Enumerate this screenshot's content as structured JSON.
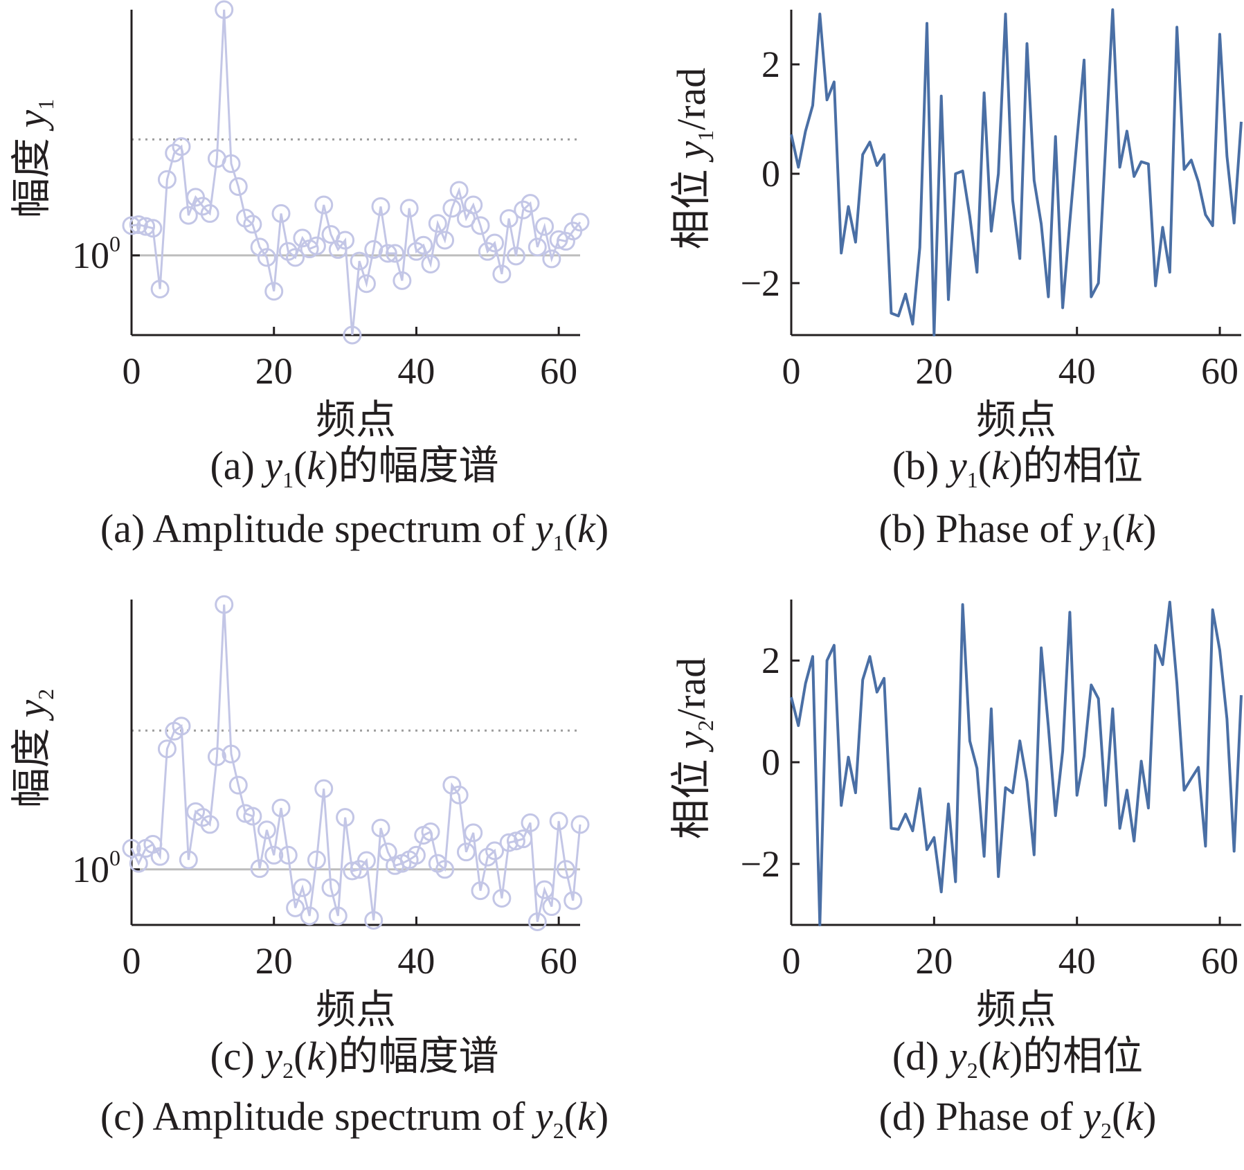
{
  "figure": {
    "panels": [
      {
        "id": "a",
        "ylabel_prefix": "幅度",
        "ylabel_var": "y",
        "ylabel_sub": "1",
        "ylabel_suffix": "",
        "xlabel": "频点",
        "ytick_base": "10",
        "ytick_exp": "0",
        "cap_zh": {
          "pre": "(a)",
          "var": "y",
          "sub": "1",
          "arg": "k",
          "post": "的幅度谱"
        },
        "cap_en": {
          "pre": "(a) Amplitude spectrum of",
          "var": "y",
          "sub": "1",
          "arg": "k",
          "post": ""
        }
      },
      {
        "id": "b",
        "ylabel_prefix": "相位",
        "ylabel_var": "y",
        "ylabel_sub": "1",
        "ylabel_suffix": "/rad",
        "xlabel": "频点",
        "cap_zh": {
          "pre": "(b)",
          "var": "y",
          "sub": "1",
          "arg": "k",
          "post": "的相位"
        },
        "cap_en": {
          "pre": "(b) Phase of",
          "var": "y",
          "sub": "1",
          "arg": "k",
          "post": ""
        }
      },
      {
        "id": "c",
        "ylabel_prefix": "幅度",
        "ylabel_var": "y",
        "ylabel_sub": "2",
        "ylabel_suffix": "",
        "xlabel": "频点",
        "ytick_base": "10",
        "ytick_exp": "0",
        "cap_zh": {
          "pre": "(c)",
          "var": "y",
          "sub": "2",
          "arg": "k",
          "post": "的幅度谱"
        },
        "cap_en": {
          "pre": "(c) Amplitude spectrum of",
          "var": "y",
          "sub": "2",
          "arg": "k",
          "post": ""
        }
      },
      {
        "id": "d",
        "ylabel_prefix": "相位",
        "ylabel_var": "y",
        "ylabel_sub": "2",
        "ylabel_suffix": "/rad",
        "xlabel": "频点",
        "cap_zh": {
          "pre": "(d)",
          "var": "y",
          "sub": "2",
          "arg": "k",
          "post": "的相位"
        },
        "cap_en": {
          "pre": "(d) Phase of",
          "var": "y",
          "sub": "2",
          "arg": "k",
          "post": ""
        }
      }
    ]
  },
  "colors": {
    "axis": "#231f20",
    "amplitude_series": "#c3c6e6",
    "phase_series": "#4a6fa5",
    "reference_solid": "#bdbdbd",
    "reference_dotted": "#9e9e9e"
  },
  "chart_data": [
    {
      "panel": "a",
      "type": "line",
      "marker": "circle",
      "title": "",
      "xlabel": "频点",
      "ylabel": "幅度 y1",
      "yscale": "log",
      "xlim": [
        0,
        63
      ],
      "xticks": [
        0,
        20,
        40,
        60
      ],
      "ylim": [
        0.31,
        37
      ],
      "yticks": [
        {
          "value": 1,
          "label": "10^0"
        }
      ],
      "reference_lines": [
        {
          "value": 1,
          "style": "solid"
        },
        {
          "value": 5.5,
          "style": "dotted"
        }
      ],
      "x": [
        0,
        1,
        2,
        3,
        4,
        5,
        6,
        7,
        8,
        9,
        10,
        11,
        12,
        13,
        14,
        15,
        16,
        17,
        18,
        19,
        20,
        21,
        22,
        23,
        24,
        25,
        26,
        27,
        28,
        29,
        30,
        31,
        32,
        33,
        34,
        35,
        36,
        37,
        38,
        39,
        40,
        41,
        42,
        43,
        44,
        45,
        46,
        47,
        48,
        49,
        50,
        51,
        52,
        53,
        54,
        55,
        56,
        57,
        58,
        59,
        60,
        61,
        62,
        63
      ],
      "values": [
        1.55,
        1.57,
        1.53,
        1.49,
        0.61,
        3.05,
        4.5,
        4.95,
        1.8,
        2.35,
        2.06,
        1.85,
        4.15,
        37,
        3.85,
        2.75,
        1.73,
        1.58,
        1.13,
        0.97,
        0.59,
        1.85,
        1.06,
        0.97,
        1.29,
        1.1,
        1.15,
        2.1,
        1.36,
        1.09,
        1.25,
        0.31,
        0.92,
        0.66,
        1.09,
        2.05,
        1.03,
        1.03,
        0.69,
        2.0,
        1.06,
        1.16,
        0.88,
        1.6,
        1.25,
        2.0,
        2.6,
        1.72,
        2.1,
        1.55,
        1.06,
        1.2,
        0.76,
        1.72,
        0.99,
        1.95,
        2.15,
        1.13,
        1.53,
        0.95,
        1.26,
        1.23,
        1.43,
        1.63
      ],
      "series": [
        {
          "name": "",
          "values_ref": "values"
        }
      ]
    },
    {
      "panel": "b",
      "type": "line",
      "title": "",
      "xlabel": "频点",
      "ylabel": "相位 y1/rad",
      "xlim": [
        0,
        63
      ],
      "xticks": [
        0,
        20,
        40,
        60
      ],
      "ylim": [
        -2.95,
        3.0
      ],
      "yticks": [
        -2,
        0,
        2
      ],
      "x": [
        0,
        1,
        2,
        3,
        4,
        5,
        6,
        7,
        8,
        9,
        10,
        11,
        12,
        13,
        14,
        15,
        16,
        17,
        18,
        19,
        20,
        21,
        22,
        23,
        24,
        25,
        26,
        27,
        28,
        29,
        30,
        31,
        32,
        33,
        34,
        35,
        36,
        37,
        38,
        39,
        40,
        41,
        42,
        43,
        44,
        45,
        46,
        47,
        48,
        49,
        50,
        51,
        52,
        53,
        54,
        55,
        56,
        57,
        58,
        59,
        60,
        61,
        62,
        63
      ],
      "values": [
        0.72,
        0.12,
        0.78,
        1.25,
        2.92,
        1.35,
        1.68,
        -1.45,
        -0.6,
        -1.25,
        0.35,
        0.58,
        0.15,
        0.35,
        -2.55,
        -2.6,
        -2.2,
        -2.75,
        -1.35,
        2.75,
        -2.95,
        1.42,
        -2.3,
        0.0,
        0.05,
        -0.78,
        -1.8,
        1.48,
        -1.05,
        0.0,
        2.92,
        -0.48,
        -1.55,
        2.38,
        -0.12,
        -0.92,
        -2.25,
        0.68,
        -2.45,
        -0.88,
        0.62,
        2.08,
        -2.25,
        -2.0,
        0.48,
        3.0,
        0.12,
        0.78,
        -0.05,
        0.22,
        0.18,
        -2.05,
        -0.98,
        -1.8,
        2.68,
        0.08,
        0.25,
        -0.15,
        -0.75,
        -0.95,
        2.55,
        0.32,
        -0.9,
        0.95
      ],
      "series": [
        {
          "name": "",
          "values_ref": "values"
        }
      ]
    },
    {
      "panel": "c",
      "type": "line",
      "marker": "circle",
      "title": "",
      "xlabel": "频点",
      "ylabel": "幅度 y2",
      "yscale": "log",
      "xlim": [
        0,
        63
      ],
      "xticks": [
        0,
        20,
        40,
        60
      ],
      "ylim": [
        0.49,
        32
      ],
      "yticks": [
        {
          "value": 1,
          "label": "10^0"
        }
      ],
      "reference_lines": [
        {
          "value": 1,
          "style": "solid"
        },
        {
          "value": 5.95,
          "style": "dotted"
        }
      ],
      "x": [
        0,
        1,
        2,
        3,
        4,
        5,
        6,
        7,
        8,
        9,
        10,
        11,
        12,
        13,
        14,
        15,
        16,
        17,
        18,
        19,
        20,
        21,
        22,
        23,
        24,
        25,
        26,
        27,
        28,
        29,
        30,
        31,
        32,
        33,
        34,
        35,
        36,
        37,
        38,
        39,
        40,
        41,
        42,
        43,
        44,
        45,
        46,
        47,
        48,
        49,
        50,
        51,
        52,
        53,
        54,
        55,
        56,
        57,
        58,
        59,
        60,
        61,
        62,
        63
      ],
      "values": [
        1.31,
        1.08,
        1.31,
        1.38,
        1.18,
        4.7,
        5.9,
        6.3,
        1.13,
        2.1,
        1.95,
        1.78,
        4.25,
        30,
        4.4,
        2.95,
        2.05,
        1.98,
        1.01,
        1.66,
        1.2,
        2.2,
        1.2,
        0.61,
        0.79,
        0.55,
        1.13,
        2.82,
        0.79,
        0.55,
        1.95,
        0.98,
        1.0,
        1.12,
        0.52,
        1.7,
        1.25,
        1.05,
        1.08,
        1.13,
        1.2,
        1.55,
        1.62,
        1.08,
        1.0,
        2.95,
        2.6,
        1.25,
        1.6,
        0.76,
        1.17,
        1.27,
        0.69,
        1.41,
        1.44,
        1.48,
        1.82,
        0.51,
        0.77,
        0.62,
        1.86,
        1.0,
        0.67,
        1.78
      ],
      "series": [
        {
          "name": "",
          "values_ref": "values"
        }
      ]
    },
    {
      "panel": "d",
      "type": "line",
      "title": "",
      "xlabel": "频点",
      "ylabel": "相位 y2/rad",
      "xlim": [
        0,
        63
      ],
      "xticks": [
        0,
        20,
        40,
        60
      ],
      "ylim": [
        -3.2,
        3.2
      ],
      "yticks": [
        -2,
        0,
        2
      ],
      "x": [
        0,
        1,
        2,
        3,
        4,
        5,
        6,
        7,
        8,
        9,
        10,
        11,
        12,
        13,
        14,
        15,
        16,
        17,
        18,
        19,
        20,
        21,
        22,
        23,
        24,
        25,
        26,
        27,
        28,
        29,
        30,
        31,
        32,
        33,
        34,
        35,
        36,
        37,
        38,
        39,
        40,
        41,
        42,
        43,
        44,
        45,
        46,
        47,
        48,
        49,
        50,
        51,
        52,
        53,
        54,
        55,
        56,
        57,
        58,
        59,
        60,
        61,
        62,
        63
      ],
      "values": [
        1.28,
        0.72,
        1.55,
        2.08,
        -3.2,
        2.0,
        2.3,
        -0.85,
        0.1,
        -0.6,
        1.62,
        2.08,
        1.38,
        1.65,
        -1.3,
        -1.32,
        -1.02,
        -1.35,
        -0.52,
        -1.72,
        -1.48,
        -2.55,
        -0.82,
        -2.35,
        3.1,
        0.42,
        -0.12,
        -1.85,
        1.05,
        -2.25,
        -0.5,
        -0.6,
        0.42,
        -0.38,
        -1.82,
        2.25,
        0.7,
        -1.05,
        0.22,
        2.95,
        -0.65,
        0.12,
        1.52,
        1.25,
        -0.85,
        1.05,
        -1.3,
        -0.55,
        -1.55,
        0.02,
        -0.9,
        2.3,
        1.92,
        3.15,
        1.55,
        -0.55,
        -0.32,
        -0.1,
        -1.65,
        3.0,
        2.2,
        0.85,
        -1.75,
        1.32
      ],
      "series": [
        {
          "name": "",
          "values_ref": "values"
        }
      ]
    }
  ]
}
